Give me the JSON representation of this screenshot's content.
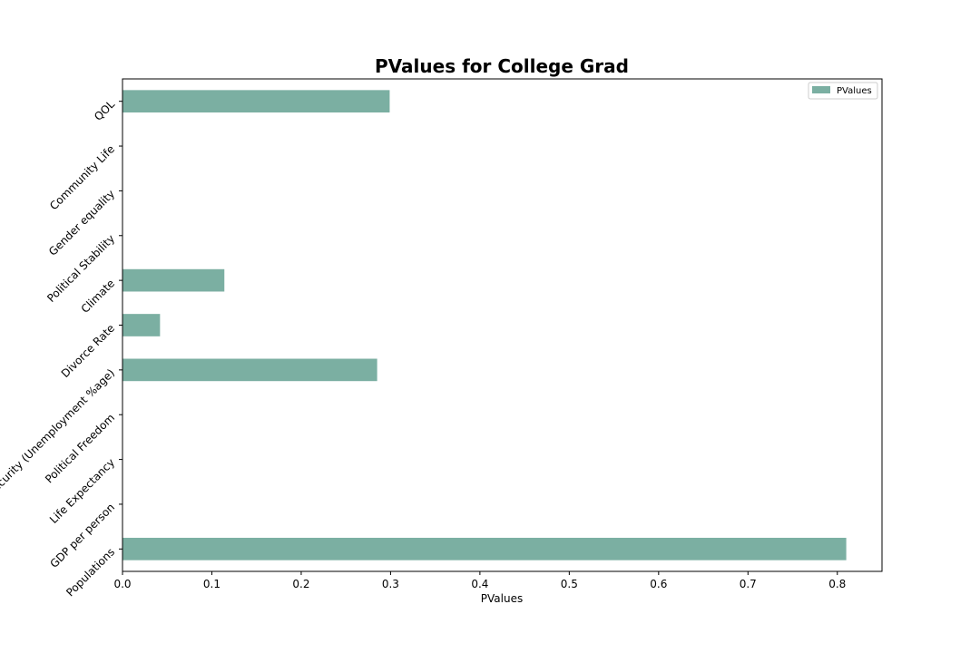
{
  "chart_data": {
    "type": "bar",
    "orientation": "horizontal",
    "title": "PValues for College Grad",
    "xlabel": "PValues",
    "ylabel": "",
    "xlim": [
      0,
      0.85
    ],
    "xticks": [
      "0.0",
      "0.1",
      "0.2",
      "0.3",
      "0.4",
      "0.5",
      "0.6",
      "0.7",
      "0.8"
    ],
    "categories": [
      "Populations",
      "GDP per person",
      "Life Expectancy",
      "Political Freedom",
      "Job Security (Unemployment %age)",
      "Divorce Rate",
      "Climate",
      "Political Stability",
      "Gender equality",
      "Community Life",
      "QOL"
    ],
    "series": [
      {
        "name": "PValues",
        "color": "#7bafa2",
        "values": [
          0.81,
          0.0,
          0.0,
          0.0,
          0.285,
          0.042,
          0.114,
          0.0,
          0.0,
          0.0,
          0.299
        ]
      }
    ],
    "legend": {
      "position": "top-right",
      "entries": [
        "PValues"
      ]
    },
    "grid": false
  }
}
